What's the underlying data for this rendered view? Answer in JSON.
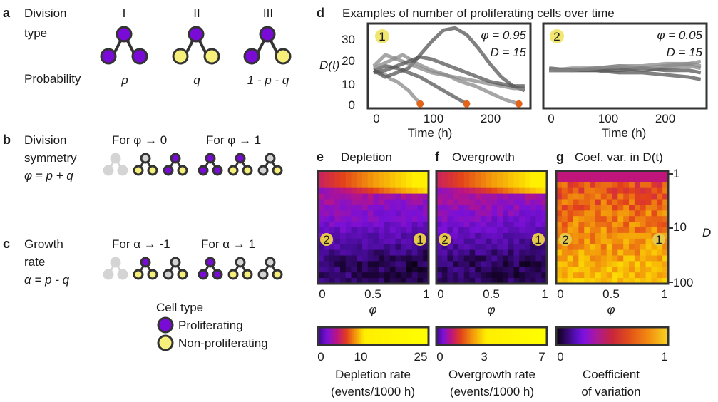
{
  "panel_letters": {
    "a": "a",
    "b": "b",
    "c": "c",
    "d": "d",
    "e": "e",
    "f": "f",
    "g": "g"
  },
  "panel_a": {
    "row1_line1": "Division",
    "row1_line2": "type",
    "row2": "Probability",
    "types": [
      "I",
      "II",
      "III"
    ],
    "probs": [
      "p",
      "q",
      "1 - p - q"
    ]
  },
  "panel_b": {
    "line1": "Division",
    "line2": "symmetry",
    "eq": "φ  = p + q",
    "left_head": "For φ → 0",
    "right_head": "For φ → 1"
  },
  "panel_c": {
    "line1": "Growth",
    "line2": "rate",
    "eq": "α = p - q",
    "left_head": "For α → -1",
    "right_head": "For α → 1"
  },
  "legend": {
    "title": "Cell type",
    "proliferating": "Proliferating",
    "non_proliferating": "Non-proliferating"
  },
  "colors": {
    "proliferating": "#7a0bd6",
    "non_proliferating": "#f6ef7a",
    "faded": "#d4d4d4",
    "outline": "#333333",
    "marker": "#f1e66f",
    "depletion_dot": "#e2641b"
  },
  "panel_d": {
    "title": "Examples of number of proliferating cells over time",
    "ylabel": "D(t)",
    "xlabel": "Time (h)",
    "yticks": [
      "0",
      "10",
      "20",
      "30"
    ],
    "xticks": [
      "0",
      "100",
      "200"
    ],
    "sub1": {
      "marker": "1",
      "phi": "φ = 0.95",
      "D": "D = 15"
    },
    "sub2": {
      "marker": "2",
      "phi": "φ = 0.05",
      "D": "D = 15"
    }
  },
  "panel_e": {
    "title": "Depletion",
    "xlabel": "φ",
    "xticks": [
      "0",
      "0.5",
      "1"
    ],
    "colorbar_ticks": [
      "0",
      "10",
      "25"
    ],
    "colorbar_label1": "Depletion rate",
    "colorbar_label2": "(events/1000 h)"
  },
  "panel_f": {
    "title": "Overgrowth",
    "xlabel": "φ",
    "xticks": [
      "0",
      "0.5",
      "1"
    ],
    "colorbar_ticks": [
      "0",
      "3",
      "7"
    ],
    "colorbar_label1": "Overgrowth rate",
    "colorbar_label2": "(events/1000 h)"
  },
  "panel_g": {
    "title": "Coef. var. in D(t)",
    "xlabel": "φ",
    "xticks": [
      "0",
      "0.5",
      "1"
    ],
    "ylabel": "D",
    "yticks": [
      "1",
      "10",
      "100"
    ],
    "colorbar_ticks": [
      "0",
      "1"
    ],
    "colorbar_label1": "Coefficient",
    "colorbar_label2": "of variation"
  },
  "heatmap_markers": {
    "left": "2",
    "right": "1"
  },
  "chart_data": [
    {
      "type": "line",
      "panel": "d1",
      "xlabel": "Time (h)",
      "ylabel": "D(t)",
      "xlim": [
        -10,
        270
      ],
      "ylim": [
        -2,
        36
      ],
      "series": [
        {
          "x": [
            0,
            10,
            20,
            30,
            40,
            50,
            60,
            70,
            80
          ],
          "y": [
            15,
            14,
            13,
            11,
            10,
            8,
            6,
            3,
            0
          ]
        },
        {
          "x": [
            0,
            20,
            40,
            60,
            80,
            100,
            120,
            140,
            160
          ],
          "y": [
            15,
            17,
            16,
            14,
            12,
            9,
            6,
            3,
            0
          ]
        },
        {
          "x": [
            0,
            25,
            50,
            75,
            100,
            125,
            150,
            175,
            200,
            225,
            250
          ],
          "y": [
            16,
            19,
            22,
            18,
            15,
            13,
            10,
            8,
            5,
            2,
            0
          ]
        },
        {
          "x": [
            0,
            20,
            40,
            60,
            80,
            100,
            120,
            140,
            160,
            180,
            200,
            220,
            240,
            260
          ],
          "y": [
            15,
            12,
            14,
            16,
            22,
            28,
            33,
            34,
            31,
            25,
            18,
            12,
            8,
            6
          ]
        },
        {
          "x": [
            0,
            20,
            40,
            60,
            80,
            100,
            120,
            140,
            160,
            180,
            200,
            220,
            240,
            260
          ],
          "y": [
            17,
            22,
            20,
            18,
            16,
            14,
            13,
            12,
            11,
            10,
            9,
            8,
            7,
            7
          ]
        },
        {
          "x": [
            0,
            20,
            40,
            60,
            80,
            100,
            120,
            140,
            160,
            180,
            200,
            220,
            240,
            260
          ],
          "y": [
            14,
            15,
            17,
            19,
            21,
            20,
            18,
            16,
            14,
            12,
            10,
            9,
            8,
            8
          ]
        }
      ],
      "depletion_events_x": [
        80,
        160,
        250
      ]
    },
    {
      "type": "line",
      "panel": "d2",
      "xlabel": "Time (h)",
      "xlim": [
        -10,
        270
      ],
      "ylim": [
        -2,
        36
      ],
      "series": [
        {
          "x": [
            0,
            40,
            80,
            120,
            160,
            200,
            240,
            260
          ],
          "y": [
            15,
            15,
            16,
            16,
            15,
            16,
            17,
            16
          ]
        },
        {
          "x": [
            0,
            40,
            80,
            120,
            160,
            200,
            240,
            260
          ],
          "y": [
            15,
            15,
            15,
            14,
            14,
            13,
            12,
            11
          ]
        },
        {
          "x": [
            0,
            40,
            80,
            120,
            160,
            200,
            240,
            260
          ],
          "y": [
            15,
            16,
            16,
            17,
            17,
            18,
            18,
            19
          ]
        },
        {
          "x": [
            0,
            40,
            80,
            120,
            160,
            200,
            240,
            260
          ],
          "y": [
            16,
            15,
            15,
            15,
            16,
            15,
            15,
            14
          ]
        },
        {
          "x": [
            0,
            40,
            80,
            120,
            160,
            200,
            240,
            260
          ],
          "y": [
            15,
            15,
            16,
            17,
            16,
            17,
            18,
            17
          ]
        }
      ]
    },
    {
      "type": "heatmap",
      "panel": "e",
      "title": "Depletion",
      "xlabel": "φ",
      "xlim": [
        0,
        1
      ],
      "colorbar": {
        "min": 0,
        "max": 25,
        "label": "Depletion rate (events/1000 h)"
      }
    },
    {
      "type": "heatmap",
      "panel": "f",
      "title": "Overgrowth",
      "xlabel": "φ",
      "xlim": [
        0,
        1
      ],
      "colorbar": {
        "min": 0,
        "max": 7,
        "label": "Overgrowth rate (events/1000 h)"
      }
    },
    {
      "type": "heatmap",
      "panel": "g",
      "title": "Coef. var. in D(t)",
      "xlabel": "φ",
      "xlim": [
        0,
        1
      ],
      "ylabel": "D",
      "ylim": [
        1,
        100
      ],
      "yscale": "log",
      "colorbar": {
        "min": 0,
        "max": 1,
        "label": "Coefficient of variation"
      }
    }
  ]
}
